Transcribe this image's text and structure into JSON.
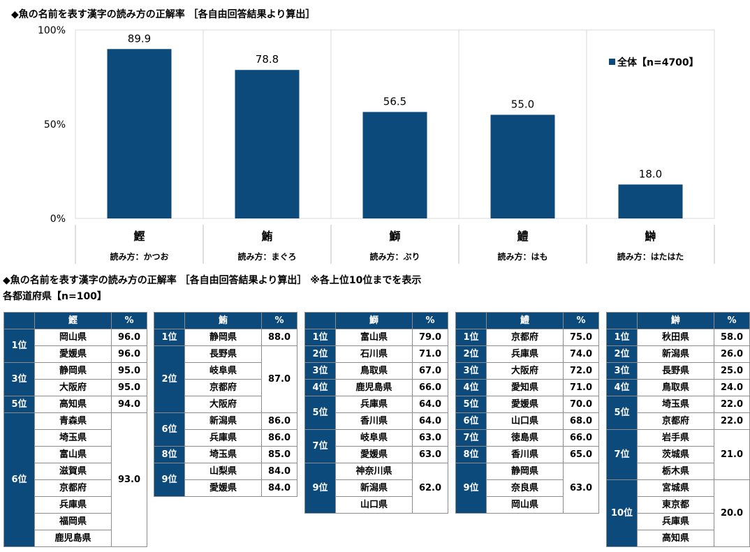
{
  "titles": {
    "chart_title": "◆魚の名前を表す漢字の読み方の正解率 ［各自由回答結果より算出］",
    "tables_title": "◆魚の名前を表す漢字の読み方の正解率 ［各自由回答結果より算出］ ※各上位10位までを表示",
    "tables_subtitle": "各都道府県【n=100】"
  },
  "chart_data": {
    "type": "bar",
    "categories": [
      "鰹",
      "鮪",
      "鰤",
      "鱧",
      "鰰"
    ],
    "readings": [
      "読み方：かつお",
      "読み方：まぐろ",
      "読み方：ぶり",
      "読み方：はも",
      "読み方：はたはた"
    ],
    "series": [
      {
        "name": "全体【n=4700】",
        "values": [
          89.9,
          78.8,
          56.5,
          55.0,
          18.0
        ]
      }
    ],
    "value_labels": [
      "89.9",
      "78.8",
      "56.5",
      "55.0",
      "18.0"
    ],
    "yticks": [
      "0%",
      "50%",
      "100%"
    ],
    "ylim": [
      0,
      100
    ],
    "legend_position": "right",
    "bar_color": "#0d4a7c",
    "grid": false
  },
  "tables": [
    {
      "fish": "鰹",
      "pct_header": "%",
      "groups": [
        {
          "rank": "1位",
          "prefs": [
            "岡山県",
            "愛媛県"
          ],
          "pcts": [
            "96.0",
            "96.0"
          ]
        },
        {
          "rank": "3位",
          "prefs": [
            "静岡県",
            "大阪府"
          ],
          "pcts": [
            "95.0",
            "95.0"
          ]
        },
        {
          "rank": "5位",
          "prefs": [
            "高知県"
          ],
          "pcts": [
            "94.0"
          ]
        },
        {
          "rank": "6位",
          "prefs": [
            "青森県",
            "埼玉県",
            "富山県",
            "滋賀県",
            "京都府",
            "兵庫県",
            "福岡県",
            "鹿児島県"
          ],
          "pcts": [
            "93.0"
          ]
        }
      ]
    },
    {
      "fish": "鮪",
      "pct_header": "%",
      "groups": [
        {
          "rank": "1位",
          "prefs": [
            "静岡県"
          ],
          "pcts": [
            "88.0"
          ]
        },
        {
          "rank": "2位",
          "prefs": [
            "長野県",
            "岐阜県",
            "京都府",
            "大阪府"
          ],
          "pcts": [
            "87.0"
          ]
        },
        {
          "rank": "6位",
          "prefs": [
            "新潟県",
            "兵庫県"
          ],
          "pcts": [
            "86.0",
            "86.0"
          ]
        },
        {
          "rank": "8位",
          "prefs": [
            "埼玉県"
          ],
          "pcts": [
            "85.0"
          ]
        },
        {
          "rank": "9位",
          "prefs": [
            "山梨県",
            "愛媛県"
          ],
          "pcts": [
            "84.0",
            "84.0"
          ]
        }
      ]
    },
    {
      "fish": "鰤",
      "pct_header": "%",
      "groups": [
        {
          "rank": "1位",
          "prefs": [
            "富山県"
          ],
          "pcts": [
            "79.0"
          ]
        },
        {
          "rank": "2位",
          "prefs": [
            "石川県"
          ],
          "pcts": [
            "71.0"
          ]
        },
        {
          "rank": "3位",
          "prefs": [
            "鳥取県"
          ],
          "pcts": [
            "67.0"
          ]
        },
        {
          "rank": "4位",
          "prefs": [
            "鹿児島県"
          ],
          "pcts": [
            "66.0"
          ]
        },
        {
          "rank": "5位",
          "prefs": [
            "兵庫県",
            "香川県"
          ],
          "pcts": [
            "64.0",
            "64.0"
          ]
        },
        {
          "rank": "7位",
          "prefs": [
            "岐阜県",
            "愛媛県"
          ],
          "pcts": [
            "63.0",
            "63.0"
          ]
        },
        {
          "rank": "9位",
          "prefs": [
            "神奈川県",
            "新潟県",
            "山口県"
          ],
          "pcts": [
            "62.0"
          ]
        }
      ]
    },
    {
      "fish": "鱧",
      "pct_header": "%",
      "groups": [
        {
          "rank": "1位",
          "prefs": [
            "京都府"
          ],
          "pcts": [
            "75.0"
          ]
        },
        {
          "rank": "2位",
          "prefs": [
            "兵庫県"
          ],
          "pcts": [
            "74.0"
          ]
        },
        {
          "rank": "3位",
          "prefs": [
            "大阪府"
          ],
          "pcts": [
            "72.0"
          ]
        },
        {
          "rank": "4位",
          "prefs": [
            "愛知県"
          ],
          "pcts": [
            "71.0"
          ]
        },
        {
          "rank": "5位",
          "prefs": [
            "愛媛県"
          ],
          "pcts": [
            "70.0"
          ]
        },
        {
          "rank": "6位",
          "prefs": [
            "山口県"
          ],
          "pcts": [
            "68.0"
          ]
        },
        {
          "rank": "7位",
          "prefs": [
            "徳島県"
          ],
          "pcts": [
            "66.0"
          ]
        },
        {
          "rank": "8位",
          "prefs": [
            "香川県"
          ],
          "pcts": [
            "65.0"
          ]
        },
        {
          "rank": "9位",
          "prefs": [
            "静岡県",
            "奈良県",
            "岡山県"
          ],
          "pcts": [
            "63.0"
          ]
        }
      ]
    },
    {
      "fish": "鰰",
      "pct_header": "%",
      "groups": [
        {
          "rank": "1位",
          "prefs": [
            "秋田県"
          ],
          "pcts": [
            "58.0"
          ]
        },
        {
          "rank": "2位",
          "prefs": [
            "新潟県"
          ],
          "pcts": [
            "26.0"
          ]
        },
        {
          "rank": "3位",
          "prefs": [
            "長野県"
          ],
          "pcts": [
            "25.0"
          ]
        },
        {
          "rank": "4位",
          "prefs": [
            "鳥取県"
          ],
          "pcts": [
            "24.0"
          ]
        },
        {
          "rank": "5位",
          "prefs": [
            "埼玉県",
            "京都府"
          ],
          "pcts": [
            "22.0",
            "22.0"
          ]
        },
        {
          "rank": "7位",
          "prefs": [
            "岩手県",
            "茨城県",
            "栃木県"
          ],
          "pcts": [
            "21.0"
          ]
        },
        {
          "rank": "10位",
          "prefs": [
            "宮城県",
            "東京都",
            "兵庫県",
            "高知県"
          ],
          "pcts": [
            "20.0"
          ]
        }
      ]
    }
  ]
}
